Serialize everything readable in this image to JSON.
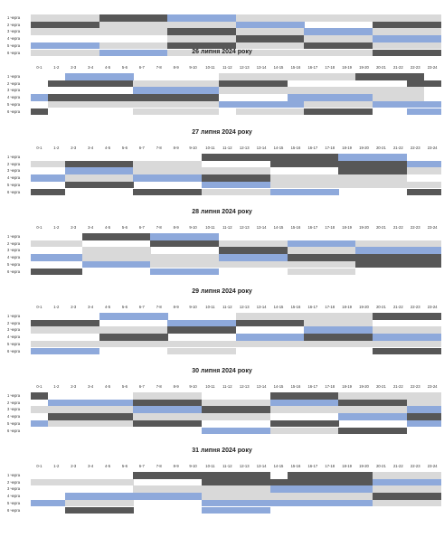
{
  "colors": {
    "dark": "#575757",
    "blue": "#8ea9db",
    "light": "#d9d9d9",
    "white": "#ffffff"
  },
  "hours": [
    "0-1",
    "1-2",
    "2-3",
    "3-4",
    "4-5",
    "5-6",
    "6-7",
    "7-8",
    "8-9",
    "9-10",
    "10-11",
    "11-12",
    "12-13",
    "13-14",
    "14-15",
    "15-16",
    "16-17",
    "17-18",
    "18-19",
    "19-20",
    "20-21",
    "21-22",
    "22-23",
    "23-24"
  ],
  "queue_labels": [
    "1 черга",
    "2 черга",
    "3 черга",
    "4 черга",
    "5 черга",
    "6 черга"
  ],
  "days": [
    {
      "title": "",
      "show_hours": false,
      "rows": [
        "LLLLDDDDBBBBLLLLLLLLLLLL",
        "DDDDLLLLLLLLBBBBWWWWDDDD",
        "LLLLLLLLDDDDLLLLBBBBLLLL",
        "WWWWWWWWLLLLDDDDLLLLBBBB",
        "BBBBLLLLDDDDLLLLDDDDLLLL",
        "LLLLBBBBLLLLLLLLLLLLDDDD"
      ]
    },
    {
      "title": "26 липня 2024 року",
      "show_hours": true,
      "rows": [
        "WWBBBBWWWWWLLLLLLLLDDDDW",
        "WDDDDDLLLLLDDDDWWWWWWWDD",
        "WWWWWWBBBBBLLLLLLLLLLLLW",
        "BDDDDDDDDDDWWWWBBBBBLLLW",
        "WLLLLLLLLLLBBBBBLLLLBBBB",
        "DWWWWWLLLLLWLLLLDDDDWWBB"
      ]
    },
    {
      "title": "27 липня 2024 року",
      "show_hours": true,
      "rows": [
        "WWWWWWWWWWDDDDDDDDBBBBWW",
        "LLDDDDLLLLWWWWDDDDDDDDBB",
        "WWBBBBLLLLLLLLWWWWDDDDLL",
        "BBLLLLBBBBDDDDLLLLLLLLWW",
        "WWDDDDWWWWBBBBLLLLLLLLLL",
        "DDWWWWDDDDLLLLBBBBWWWWDD"
      ]
    },
    {
      "title": "28 липня 2024 року",
      "show_hours": true,
      "rows": [
        "WWWDDDDBBBBWWWWWWWWWWWWW",
        "LLLWWWWDDDDLLLLBBBBLLLLL",
        "WWWLLLLWWWWDDDDLLLLBBBBB",
        "BBBLLLLLLLLBBBBDDDDDDDDD",
        "WWWBBBBLLLLLLLLLLLLDDDDD",
        "DDDWWWWBBBBWWWWLLLLWWWWW"
      ]
    },
    {
      "title": "29 липня 2024 року",
      "show_hours": true,
      "rows": [
        "WWWWBBBBWWWWLLLLLLLLDDDD",
        "DDDDWWWWBBBBDDDDLLLLWWWW",
        "LLLLLLLLDDDDWWWWBBBBLLLL",
        "WWWWDDDDWWWWBBBBDDDDBBBB",
        "LLLLLLLLLLLLLLLLLLLLLLLL",
        "BBBBWWWWLLLLWWWWWWWWDDDD"
      ]
    },
    {
      "title": "30 липня 2024 року",
      "show_hours": true,
      "rows": [
        "DWWWWWLLLLWWWWDDDDLLLLLL",
        "WBBBBBDDDDLLLLBBBBDDDDLL",
        "LLLLLLBBBBDDDDLLLLLLLLBB",
        "WDDDDDLLLLLLLLWWWWBBBBDD",
        "BLLLLLDDDDWWWWDDDDWWWWBB",
        "WWWWWWWWWWBBBBLLLLDDDDWW"
      ]
    },
    {
      "title": "31 липня 2024 року",
      "show_hours": true,
      "rows": [
        "WWWWWWDDDDDDDDWDDDDDLLLL",
        "LLLLLLWWWWDDDDDDDDDDBBBB",
        "WWWWWWLLLLLLLLBBBBBBLLLL",
        "WWBBBBBBBBLLLLLLLLLLDDDD",
        "BBLLLLWWWWBBBBBBBBBBLLLL",
        "WWDDDDWWWWBBBBWWWWWWWWWW"
      ]
    }
  ]
}
